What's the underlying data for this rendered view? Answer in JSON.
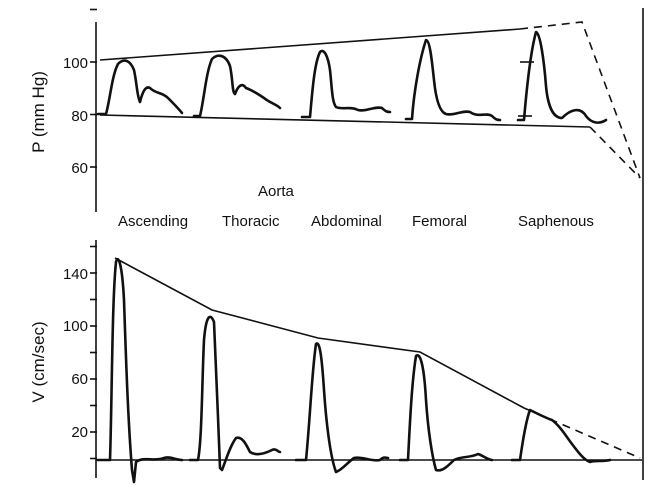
{
  "chart_data": [
    {
      "type": "line",
      "title": "",
      "ylabel": "P (mm Hg)",
      "yticks": [
        60,
        80,
        100
      ],
      "ylim": [
        46,
        122
      ],
      "categories": [
        "Ascending",
        "Thoracic",
        "Abdominal",
        "Femoral",
        "Saphenous"
      ],
      "group_label": "Aorta",
      "series": [
        {
          "name": "",
          "values": [
            101,
            102,
            104,
            109,
            112
          ]
        },
        {
          "name": "",
          "values": [
            80,
            80,
            79,
            78,
            76
          ]
        }
      ],
      "grid": false
    },
    {
      "type": "line",
      "title": "",
      "ylabel": "V (cm/sec)",
      "yticks": [
        20,
        60,
        100,
        140
      ],
      "ylim": [
        -5,
        170
      ],
      "categories": [
        "Ascending",
        "Thoracic",
        "Abdominal",
        "Femoral",
        "Saphenous"
      ],
      "series": [
        {
          "name": "",
          "values": [
            152,
            110,
            90,
            80,
            34
          ]
        }
      ],
      "grid": false
    }
  ]
}
